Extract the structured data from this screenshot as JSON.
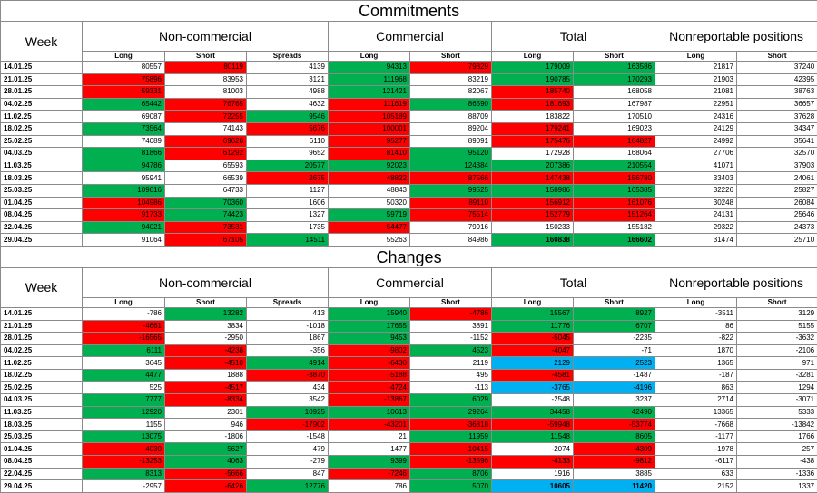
{
  "colors": {
    "green": "#00b050",
    "red": "#ff0000",
    "blue": "#00b0f0"
  },
  "commitments": {
    "title": "Commitments",
    "week_header": "Week",
    "groups": [
      "Non-commercial",
      "Commercial",
      "Total",
      "Nonreportable positions"
    ],
    "subheaders": [
      "Long",
      "Short",
      "Spreads",
      "Long",
      "Short",
      "Long",
      "Short",
      "Long",
      "Short"
    ],
    "rows": [
      {
        "week": "14.01.25",
        "cells": [
          [
            "80557",
            ""
          ],
          [
            "80119",
            "r"
          ],
          [
            "4139",
            ""
          ],
          [
            "94313",
            "g"
          ],
          [
            "79329",
            "r"
          ],
          [
            "179009",
            "g"
          ],
          [
            "163586",
            "g"
          ],
          [
            "21817",
            ""
          ],
          [
            "37240",
            ""
          ]
        ]
      },
      {
        "week": "21.01.25",
        "cells": [
          [
            "75896",
            "r"
          ],
          [
            "83953",
            ""
          ],
          [
            "3121",
            ""
          ],
          [
            "111968",
            "g"
          ],
          [
            "83219",
            ""
          ],
          [
            "190785",
            "g"
          ],
          [
            "170293",
            "g"
          ],
          [
            "21903",
            ""
          ],
          [
            "42395",
            ""
          ]
        ]
      },
      {
        "week": "28.01.25",
        "cells": [
          [
            "59331",
            "r"
          ],
          [
            "81003",
            ""
          ],
          [
            "4988",
            ""
          ],
          [
            "121421",
            "g"
          ],
          [
            "82067",
            ""
          ],
          [
            "185740",
            "r"
          ],
          [
            "168058",
            ""
          ],
          [
            "21081",
            ""
          ],
          [
            "38763",
            ""
          ]
        ]
      },
      {
        "week": "04.02.25",
        "cells": [
          [
            "65442",
            "g"
          ],
          [
            "76765",
            "r"
          ],
          [
            "4632",
            ""
          ],
          [
            "111619",
            "r"
          ],
          [
            "86590",
            "g"
          ],
          [
            "181693",
            "r"
          ],
          [
            "167987",
            ""
          ],
          [
            "22951",
            ""
          ],
          [
            "36657",
            ""
          ]
        ]
      },
      {
        "week": "11.02.25",
        "cells": [
          [
            "69087",
            ""
          ],
          [
            "72255",
            "r"
          ],
          [
            "9546",
            "g"
          ],
          [
            "105189",
            "r"
          ],
          [
            "88709",
            ""
          ],
          [
            "183822",
            ""
          ],
          [
            "170510",
            ""
          ],
          [
            "24316",
            ""
          ],
          [
            "37628",
            ""
          ]
        ]
      },
      {
        "week": "18.02.25",
        "cells": [
          [
            "73564",
            "g"
          ],
          [
            "74143",
            ""
          ],
          [
            "5676",
            "r"
          ],
          [
            "100001",
            "r"
          ],
          [
            "89204",
            ""
          ],
          [
            "179241",
            "r"
          ],
          [
            "169023",
            ""
          ],
          [
            "24129",
            ""
          ],
          [
            "34347",
            ""
          ]
        ]
      },
      {
        "week": "25.02.25",
        "cells": [
          [
            "74089",
            ""
          ],
          [
            "69626",
            "r"
          ],
          [
            "6110",
            ""
          ],
          [
            "95277",
            "r"
          ],
          [
            "89091",
            ""
          ],
          [
            "175476",
            "r"
          ],
          [
            "164827",
            "r"
          ],
          [
            "24992",
            ""
          ],
          [
            "35641",
            ""
          ]
        ]
      },
      {
        "week": "04.03.25",
        "cells": [
          [
            "81866",
            "g"
          ],
          [
            "61292",
            "r"
          ],
          [
            "9652",
            ""
          ],
          [
            "81410",
            "r"
          ],
          [
            "95120",
            "g"
          ],
          [
            "172928",
            ""
          ],
          [
            "168064",
            ""
          ],
          [
            "27706",
            ""
          ],
          [
            "32570",
            ""
          ]
        ]
      },
      {
        "week": "11.03.25",
        "cells": [
          [
            "94786",
            "g"
          ],
          [
            "65593",
            ""
          ],
          [
            "20577",
            "g"
          ],
          [
            "92023",
            "g"
          ],
          [
            "124384",
            "g"
          ],
          [
            "207386",
            "g"
          ],
          [
            "210554",
            "g"
          ],
          [
            "41071",
            ""
          ],
          [
            "37903",
            ""
          ]
        ]
      },
      {
        "week": "18.03.25",
        "cells": [
          [
            "95941",
            ""
          ],
          [
            "66539",
            ""
          ],
          [
            "2675",
            "r"
          ],
          [
            "48822",
            "r"
          ],
          [
            "87566",
            "r"
          ],
          [
            "147438",
            "r"
          ],
          [
            "156780",
            "r"
          ],
          [
            "33403",
            ""
          ],
          [
            "24061",
            ""
          ]
        ]
      },
      {
        "week": "25.03.25",
        "cells": [
          [
            "109016",
            "g"
          ],
          [
            "64733",
            ""
          ],
          [
            "1127",
            ""
          ],
          [
            "48843",
            ""
          ],
          [
            "99525",
            "g"
          ],
          [
            "158986",
            "g"
          ],
          [
            "165385",
            "g"
          ],
          [
            "32226",
            ""
          ],
          [
            "25827",
            ""
          ]
        ]
      },
      {
        "week": "01.04.25",
        "cells": [
          [
            "104986",
            "r"
          ],
          [
            "70360",
            "g"
          ],
          [
            "1606",
            ""
          ],
          [
            "50320",
            ""
          ],
          [
            "89110",
            "r"
          ],
          [
            "156912",
            "r"
          ],
          [
            "161076",
            "r"
          ],
          [
            "30248",
            ""
          ],
          [
            "26084",
            ""
          ]
        ]
      },
      {
        "week": "08.04.25",
        "cells": [
          [
            "91733",
            "r"
          ],
          [
            "74423",
            "g"
          ],
          [
            "1327",
            ""
          ],
          [
            "59719",
            "g"
          ],
          [
            "75514",
            "r"
          ],
          [
            "152779",
            "r"
          ],
          [
            "151264",
            "r"
          ],
          [
            "24131",
            ""
          ],
          [
            "25646",
            ""
          ]
        ]
      },
      {
        "week": "22.04.25",
        "cells": [
          [
            "94021",
            "g"
          ],
          [
            "73531",
            "r"
          ],
          [
            "1735",
            ""
          ],
          [
            "54477",
            "r"
          ],
          [
            "79916",
            ""
          ],
          [
            "150233",
            ""
          ],
          [
            "155182",
            ""
          ],
          [
            "29322",
            ""
          ],
          [
            "24373",
            ""
          ]
        ]
      },
      {
        "week": "29.04.25",
        "cells": [
          [
            "91064",
            ""
          ],
          [
            "67105",
            "r"
          ],
          [
            "14511",
            "g"
          ],
          [
            "55263",
            ""
          ],
          [
            "84986",
            ""
          ],
          [
            "160838",
            "g"
          ],
          [
            "166602",
            "g"
          ],
          [
            "31474",
            ""
          ],
          [
            "25710",
            ""
          ]
        ]
      }
    ]
  },
  "changes": {
    "title": "Changes",
    "week_header": "Week",
    "groups": [
      "Non-commercial",
      "Commercial",
      "Total",
      "Nonreportable positions"
    ],
    "subheaders": [
      "Long",
      "Short",
      "Spreads",
      "Long",
      "Short",
      "Long",
      "Short",
      "Long",
      "Short"
    ],
    "rows": [
      {
        "week": "14.01.25",
        "cells": [
          [
            "-786",
            ""
          ],
          [
            "13282",
            "g"
          ],
          [
            "413",
            ""
          ],
          [
            "15940",
            "g"
          ],
          [
            "-4786",
            "r"
          ],
          [
            "15567",
            "g"
          ],
          [
            "8927",
            "g"
          ],
          [
            "-3511",
            ""
          ],
          [
            "3129",
            ""
          ]
        ]
      },
      {
        "week": "21.01.25",
        "cells": [
          [
            "-4661",
            "r"
          ],
          [
            "3834",
            ""
          ],
          [
            "-1018",
            ""
          ],
          [
            "17655",
            "g"
          ],
          [
            "3891",
            ""
          ],
          [
            "11776",
            "g"
          ],
          [
            "6707",
            "g"
          ],
          [
            "86",
            ""
          ],
          [
            "5155",
            ""
          ]
        ]
      },
      {
        "week": "28.01.25",
        "cells": [
          [
            "-16565",
            "r"
          ],
          [
            "-2950",
            ""
          ],
          [
            "1867",
            ""
          ],
          [
            "9453",
            "g"
          ],
          [
            "-1152",
            ""
          ],
          [
            "-5045",
            "r"
          ],
          [
            "-2235",
            ""
          ],
          [
            "-822",
            ""
          ],
          [
            "-3632",
            ""
          ]
        ]
      },
      {
        "week": "04.02.25",
        "cells": [
          [
            "6111",
            "g"
          ],
          [
            "-4238",
            "r"
          ],
          [
            "-356",
            ""
          ],
          [
            "-9802",
            "r"
          ],
          [
            "4523",
            "g"
          ],
          [
            "-4047",
            "r"
          ],
          [
            "-71",
            ""
          ],
          [
            "1870",
            ""
          ],
          [
            "-2106",
            ""
          ]
        ]
      },
      {
        "week": "11.02.25",
        "cells": [
          [
            "3645",
            ""
          ],
          [
            "-4510",
            "r"
          ],
          [
            "4914",
            "g"
          ],
          [
            "-6430",
            "r"
          ],
          [
            "2119",
            ""
          ],
          [
            "2129",
            "b"
          ],
          [
            "2523",
            "b"
          ],
          [
            "1365",
            ""
          ],
          [
            "971",
            ""
          ]
        ]
      },
      {
        "week": "18.02.25",
        "cells": [
          [
            "4477",
            "g"
          ],
          [
            "1888",
            ""
          ],
          [
            "-3870",
            "r"
          ],
          [
            "-5188",
            "r"
          ],
          [
            "495",
            ""
          ],
          [
            "-4581",
            "r"
          ],
          [
            "-1487",
            ""
          ],
          [
            "-187",
            ""
          ],
          [
            "-3281",
            ""
          ]
        ]
      },
      {
        "week": "25.02.25",
        "cells": [
          [
            "525",
            ""
          ],
          [
            "-4517",
            "r"
          ],
          [
            "434",
            ""
          ],
          [
            "-4724",
            "r"
          ],
          [
            "-113",
            ""
          ],
          [
            "-3765",
            "b"
          ],
          [
            "-4196",
            "b"
          ],
          [
            "863",
            ""
          ],
          [
            "1294",
            ""
          ]
        ]
      },
      {
        "week": "04.03.25",
        "cells": [
          [
            "7777",
            "g"
          ],
          [
            "-8334",
            "r"
          ],
          [
            "3542",
            ""
          ],
          [
            "-13867",
            "r"
          ],
          [
            "6029",
            "g"
          ],
          [
            "-2548",
            ""
          ],
          [
            "3237",
            ""
          ],
          [
            "2714",
            ""
          ],
          [
            "-3071",
            ""
          ]
        ]
      },
      {
        "week": "11.03.25",
        "cells": [
          [
            "12920",
            "g"
          ],
          [
            "2301",
            ""
          ],
          [
            "10925",
            "g"
          ],
          [
            "10613",
            "g"
          ],
          [
            "29264",
            "g"
          ],
          [
            "34458",
            "g"
          ],
          [
            "42490",
            "g"
          ],
          [
            "13365",
            ""
          ],
          [
            "5333",
            ""
          ]
        ]
      },
      {
        "week": "18.03.25",
        "cells": [
          [
            "1155",
            ""
          ],
          [
            "946",
            ""
          ],
          [
            "-17902",
            "r"
          ],
          [
            "-43201",
            "r"
          ],
          [
            "-36818",
            "r"
          ],
          [
            "-59948",
            "r"
          ],
          [
            "-53774",
            "r"
          ],
          [
            "-7668",
            ""
          ],
          [
            "-13842",
            ""
          ]
        ]
      },
      {
        "week": "25.03.25",
        "cells": [
          [
            "13075",
            "g"
          ],
          [
            "-1806",
            ""
          ],
          [
            "-1548",
            ""
          ],
          [
            "21",
            ""
          ],
          [
            "11959",
            "g"
          ],
          [
            "11548",
            "g"
          ],
          [
            "8605",
            "g"
          ],
          [
            "-1177",
            ""
          ],
          [
            "1766",
            ""
          ]
        ]
      },
      {
        "week": "01.04.25",
        "cells": [
          [
            "-4030",
            "r"
          ],
          [
            "5627",
            "g"
          ],
          [
            "479",
            ""
          ],
          [
            "1477",
            ""
          ],
          [
            "-10415",
            "r"
          ],
          [
            "-2074",
            ""
          ],
          [
            "-4309",
            "r"
          ],
          [
            "-1978",
            ""
          ],
          [
            "257",
            ""
          ]
        ]
      },
      {
        "week": "08.04.25",
        "cells": [
          [
            "-13253",
            "r"
          ],
          [
            "4063",
            "g"
          ],
          [
            "-279",
            ""
          ],
          [
            "9399",
            "g"
          ],
          [
            "-13596",
            "r"
          ],
          [
            "-4133",
            "r"
          ],
          [
            "-9812",
            "r"
          ],
          [
            "-6117",
            ""
          ],
          [
            "-438",
            ""
          ]
        ]
      },
      {
        "week": "22.04.25",
        "cells": [
          [
            "8313",
            "g"
          ],
          [
            "-5666",
            "r"
          ],
          [
            "847",
            ""
          ],
          [
            "-7246",
            "r"
          ],
          [
            "8706",
            "g"
          ],
          [
            "1916",
            ""
          ],
          [
            "3885",
            ""
          ],
          [
            "633",
            ""
          ],
          [
            "-1336",
            ""
          ]
        ]
      },
      {
        "week": "29.04.25",
        "cells": [
          [
            "-2957",
            ""
          ],
          [
            "-6426",
            "r"
          ],
          [
            "12776",
            "g"
          ],
          [
            "786",
            ""
          ],
          [
            "5070",
            "g"
          ],
          [
            "10605",
            "b"
          ],
          [
            "11420",
            "b"
          ],
          [
            "2152",
            ""
          ],
          [
            "1337",
            ""
          ]
        ]
      }
    ]
  }
}
